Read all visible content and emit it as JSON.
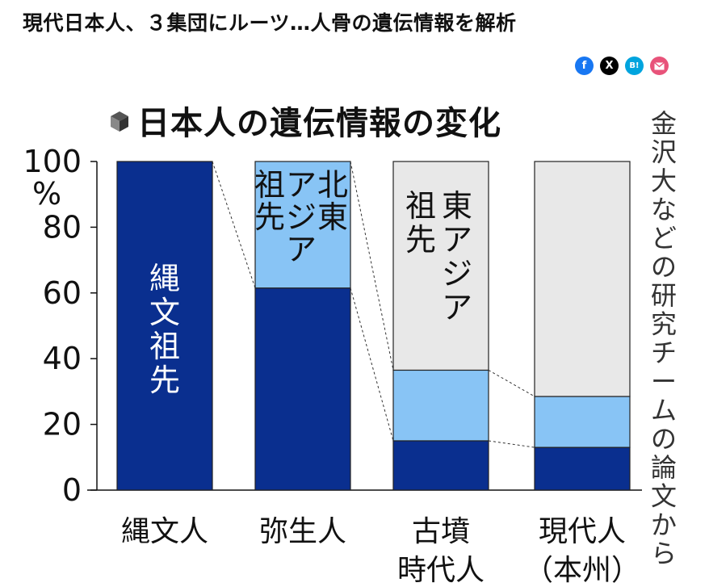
{
  "headline": "現代日本人、３集団にルーツ…人骨の遺伝情報を解析",
  "share": [
    {
      "name": "facebook-share-button",
      "icon": "facebook-icon",
      "glyph": "f",
      "color": "#1877f2"
    },
    {
      "name": "x-share-button",
      "icon": "x-icon",
      "glyph": "X",
      "color": "#000000"
    },
    {
      "name": "hatena-bookmark-button",
      "icon": "hatena-icon",
      "glyph": "B!",
      "color": "#00a4de"
    },
    {
      "name": "mail-share-button",
      "icon": "mail-icon",
      "glyph": "",
      "color": "#e8537a"
    }
  ],
  "chart_data": {
    "type": "bar",
    "stacked": true,
    "title": "日本人の遺伝情報の変化",
    "ylim": [
      0,
      100
    ],
    "yticks": [
      "0",
      "20",
      "40",
      "60",
      "80",
      "100"
    ],
    "yunit": "%",
    "categories": [
      [
        "縄文人"
      ],
      [
        "弥生人"
      ],
      [
        "古墳",
        "時代人"
      ],
      [
        "現代人",
        "（本州）"
      ]
    ],
    "series": [
      {
        "name": "縄文祖先",
        "color": "#0a2f8f",
        "values": [
          100,
          61.5,
          15,
          13
        ]
      },
      {
        "name": "北東アジア祖先",
        "color": "#88c4f5",
        "values": [
          0,
          38.5,
          21.5,
          15.5
        ]
      },
      {
        "name": "東アジア祖先",
        "color": "#e8e8e8",
        "values": [
          0,
          0,
          63.5,
          71.5
        ]
      }
    ],
    "annotations": [
      "縄文祖先",
      "北東アジア祖先",
      "東アジア祖先"
    ],
    "source": "金沢大などの研究チームの論文から"
  }
}
